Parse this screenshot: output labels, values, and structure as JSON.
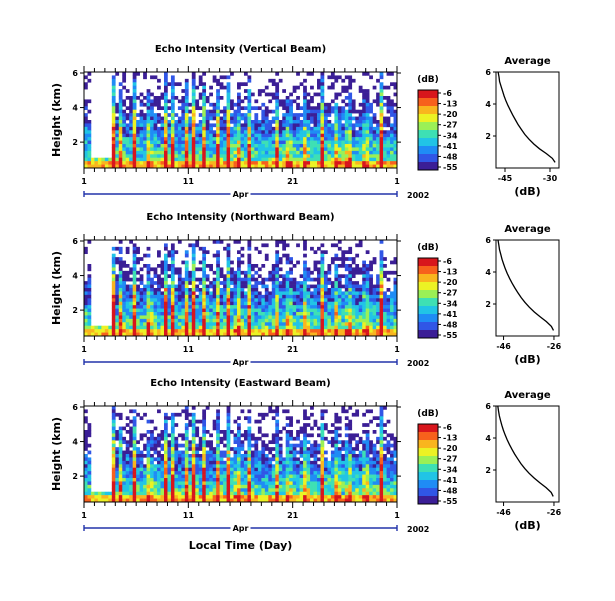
{
  "colorscale": {
    "unit": "(dB)",
    "ticks": [
      -6,
      -13,
      -20,
      -27,
      -34,
      -41,
      -48,
      -55
    ],
    "colors": [
      "#3b1e96",
      "#3056e6",
      "#1f8cf5",
      "#21c4e6",
      "#3ee0b4",
      "#9bf056",
      "#ecf224",
      "#f9b51e",
      "#f7611c",
      "#d8161c"
    ]
  },
  "common": {
    "x_ticks": [
      "1",
      "11",
      "21",
      "1"
    ],
    "month_label": "Apr",
    "year_label": "2002",
    "x_title": "Local Time (Day)",
    "y_title": "Height (km)",
    "y_ticks": [
      "6",
      "4",
      "2"
    ],
    "avg_title": "Average",
    "avg_xlabel": "(dB)",
    "avg_y_ticks": [
      "6",
      "4",
      "2"
    ]
  },
  "chart_data": [
    {
      "type": "heatmap",
      "title": "Echo Intensity (Vertical Beam)",
      "ylabel": "Height (km)",
      "xlabel": "",
      "x_range_days": [
        1,
        31
      ],
      "ylim": [
        0,
        6
      ],
      "average_profile": {
        "type": "line",
        "title": "Average",
        "xlabel": "(dB)",
        "x_ticks": [
          "-45",
          "-30"
        ],
        "xlim": [
          -48,
          -27
        ],
        "ylim": [
          0,
          6
        ],
        "x": [
          -47.3,
          -47,
          -46.8,
          -46.3,
          -45.8,
          -45.3,
          -44.7,
          -44,
          -43.2,
          -42.4,
          -41.5,
          -40.6,
          -39.5,
          -38.4,
          -37,
          -35.4,
          -33.5,
          -31.2,
          -29.2,
          -28.3
        ],
        "y": [
          6,
          5.7,
          5.4,
          5.1,
          4.8,
          4.5,
          4.2,
          3.9,
          3.6,
          3.3,
          3,
          2.7,
          2.4,
          2.1,
          1.8,
          1.5,
          1.2,
          0.9,
          0.6,
          0.35
        ]
      }
    },
    {
      "type": "heatmap",
      "title": "Echo Intensity (Northward Beam)",
      "ylabel": "Height (km)",
      "xlabel": "",
      "x_range_days": [
        1,
        31
      ],
      "ylim": [
        0,
        6
      ],
      "average_profile": {
        "type": "line",
        "title": "Average",
        "xlabel": "(dB)",
        "x_ticks": [
          "-46",
          "-26"
        ],
        "xlim": [
          -49,
          -24
        ],
        "ylim": [
          0,
          6
        ],
        "x": [
          -48.2,
          -47.9,
          -47.6,
          -47.1,
          -46.6,
          -46,
          -45.3,
          -44.5,
          -43.6,
          -42.6,
          -41.5,
          -40.3,
          -39,
          -37.5,
          -35.8,
          -33.8,
          -31.5,
          -29,
          -27,
          -26.2
        ],
        "y": [
          6,
          5.7,
          5.4,
          5.1,
          4.8,
          4.5,
          4.2,
          3.9,
          3.6,
          3.3,
          3,
          2.7,
          2.4,
          2.1,
          1.8,
          1.5,
          1.2,
          0.9,
          0.6,
          0.35
        ]
      }
    },
    {
      "type": "heatmap",
      "title": "Echo Intensity (Eastward Beam)",
      "ylabel": "Height (km)",
      "xlabel": "Local Time (Day)",
      "x_range_days": [
        1,
        31
      ],
      "ylim": [
        0,
        6
      ],
      "average_profile": {
        "type": "line",
        "title": "Average",
        "xlabel": "(dB)",
        "x_ticks": [
          "-46",
          "-26"
        ],
        "xlim": [
          -49,
          -24
        ],
        "ylim": [
          0,
          6
        ],
        "x": [
          -48.3,
          -48,
          -47.7,
          -47.2,
          -46.7,
          -46.1,
          -45.4,
          -44.6,
          -43.7,
          -42.7,
          -41.6,
          -40.4,
          -39.1,
          -37.6,
          -35.9,
          -33.9,
          -31.6,
          -29.1,
          -27.1,
          -26.3
        ],
        "y": [
          6,
          5.7,
          5.4,
          5.1,
          4.8,
          4.5,
          4.2,
          3.9,
          3.6,
          3.3,
          3,
          2.7,
          2.4,
          2.1,
          1.8,
          1.5,
          1.2,
          0.9,
          0.6,
          0.35
        ]
      }
    }
  ]
}
